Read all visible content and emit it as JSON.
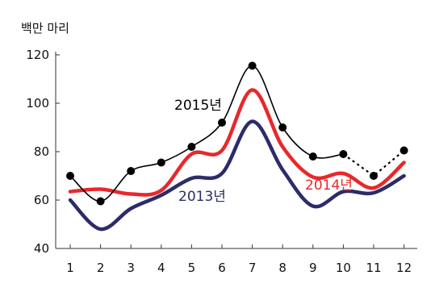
{
  "chart_data": {
    "type": "line",
    "unit_label": "백만 마리",
    "x": [
      1,
      2,
      3,
      4,
      5,
      6,
      7,
      8,
      9,
      10,
      11,
      12
    ],
    "x_tick_labels": [
      "1",
      "2",
      "3",
      "4",
      "5",
      "6",
      "7",
      "8",
      "9",
      "10",
      "11",
      "12"
    ],
    "ylim": [
      40,
      120
    ],
    "y_ticks": [
      40,
      60,
      80,
      100,
      120
    ],
    "y_tick_labels": [
      "40",
      "60",
      "80",
      "100",
      "120"
    ],
    "grid": false,
    "series": [
      {
        "name": "2015년",
        "color": "#000000",
        "marker": "filled-circle",
        "values": [
          70,
          59.5,
          72,
          75.5,
          82,
          92,
          115.5,
          90,
          78,
          79,
          70,
          80.5
        ],
        "dotted_from_index": 9
      },
      {
        "name": "2014년",
        "color": "#e8282b",
        "marker": "none",
        "values": [
          63.5,
          64.5,
          62.5,
          64,
          79,
          80.5,
          105.5,
          82,
          69.5,
          71,
          65,
          75.5
        ]
      },
      {
        "name": "2013년",
        "color": "#2c2c6a",
        "marker": "none",
        "values": [
          60,
          48,
          56.5,
          62,
          69,
          71,
          92.5,
          72.5,
          57.5,
          63.5,
          63,
          70
        ]
      }
    ]
  }
}
